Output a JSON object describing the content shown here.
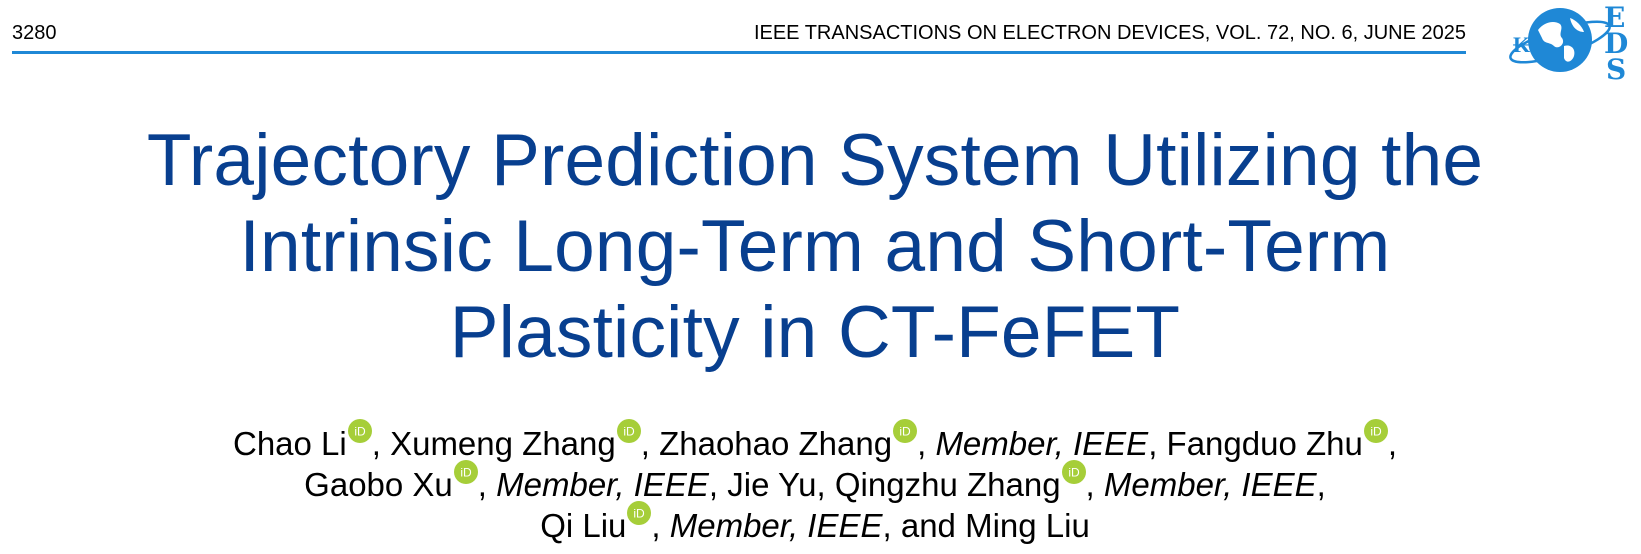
{
  "header": {
    "page_number": "3280",
    "journal_info": "IEEE TRANSACTIONS ON ELECTRON DEVICES, VOL. 72, NO. 6, JUNE 2025",
    "logo_text": "EDS"
  },
  "title": {
    "line1": "Trajectory Prediction System Utilizing the",
    "line2": "Intrinsic Long-Term and Short-Term",
    "line3": "Plasticity in CT-FeFET"
  },
  "authors": {
    "a1": "Chao Li",
    "a2": "Xumeng Zhang",
    "a3": "Zhaohao Zhang",
    "a4": "Fangduo Zhu",
    "a5": "Gaobo Xu",
    "a6": "Jie Yu",
    "a7": "Qingzhu Zhang",
    "a8": "Qi Liu",
    "a9": "Ming Liu",
    "membership": "Member, IEEE",
    "comma": ",",
    "and": "and",
    "orcid_text": "iD"
  },
  "colors": {
    "title": "#083f8f",
    "rule": "#1f88d6",
    "logo": "#1f88d6",
    "orcid": "#a6ce39"
  }
}
